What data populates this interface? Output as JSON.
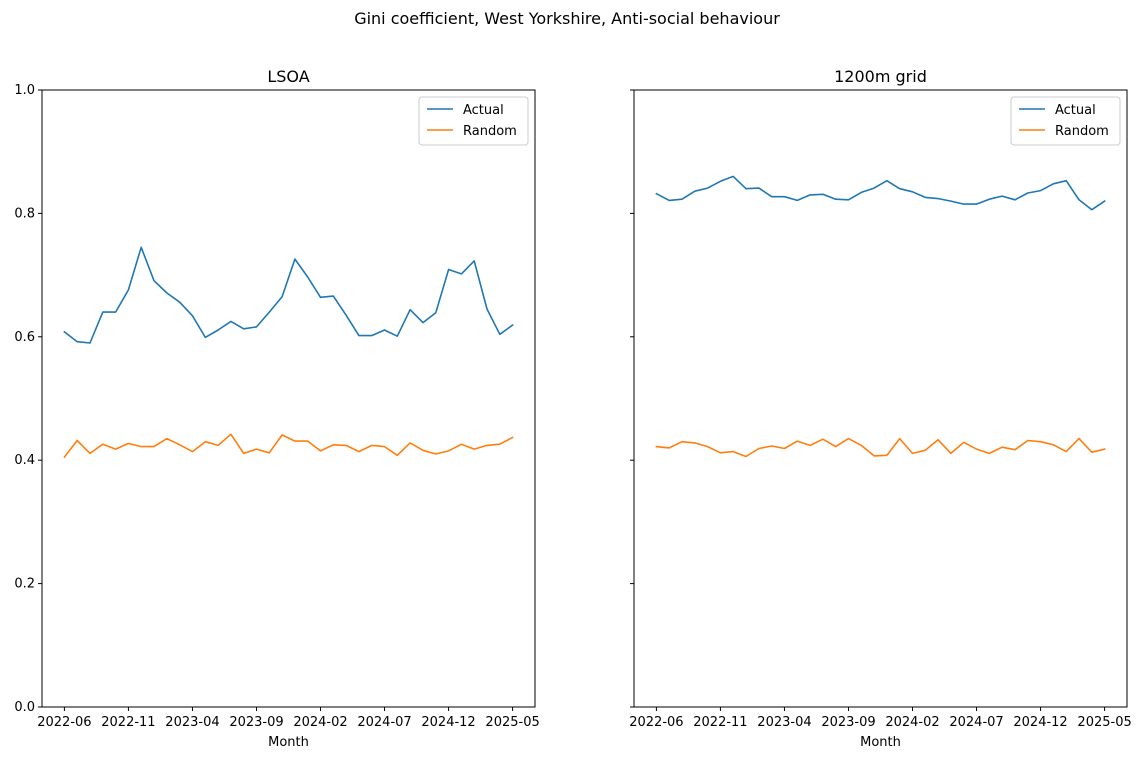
{
  "figure": {
    "title": "Gini coefficient, West Yorkshire, Anti-social behaviour"
  },
  "chart_data": [
    {
      "type": "line",
      "title": "LSOA",
      "xlabel": "Month",
      "ylabel": "",
      "ylim": [
        0,
        1
      ],
      "yticks": [
        "0.0",
        "0.2",
        "0.4",
        "0.6",
        "0.8",
        "1.0"
      ],
      "xticks": [
        "2022-06",
        "2022-11",
        "2023-04",
        "2023-09",
        "2024-02",
        "2024-07",
        "2024-12",
        "2025-05"
      ],
      "legend_position": "top-right",
      "x": [
        "2022-06",
        "2022-07",
        "2022-08",
        "2022-09",
        "2022-10",
        "2022-11",
        "2022-12",
        "2023-01",
        "2023-02",
        "2023-03",
        "2023-04",
        "2023-05",
        "2023-06",
        "2023-07",
        "2023-08",
        "2023-09",
        "2023-10",
        "2023-11",
        "2023-12",
        "2024-01",
        "2024-02",
        "2024-03",
        "2024-04",
        "2024-05",
        "2024-06",
        "2024-07",
        "2024-08",
        "2024-09",
        "2024-10",
        "2024-11",
        "2024-12",
        "2025-01",
        "2025-02",
        "2025-03",
        "2025-04",
        "2025-05"
      ],
      "series": [
        {
          "name": "Actual",
          "color": "#1f77b4",
          "values": [
            0.608,
            0.592,
            0.59,
            0.64,
            0.64,
            0.676,
            0.745,
            0.691,
            0.671,
            0.656,
            0.634,
            0.599,
            0.611,
            0.625,
            0.613,
            0.616,
            0.64,
            0.665,
            0.726,
            0.697,
            0.664,
            0.666,
            0.635,
            0.602,
            0.602,
            0.611,
            0.601,
            0.644,
            0.623,
            0.639,
            0.709,
            0.702,
            0.723,
            0.645,
            0.604,
            0.619
          ]
        },
        {
          "name": "Random",
          "color": "#ff7f0e",
          "values": [
            0.405,
            0.432,
            0.411,
            0.426,
            0.418,
            0.427,
            0.422,
            0.422,
            0.435,
            0.425,
            0.414,
            0.43,
            0.424,
            0.442,
            0.411,
            0.418,
            0.412,
            0.441,
            0.431,
            0.431,
            0.415,
            0.425,
            0.424,
            0.414,
            0.424,
            0.422,
            0.408,
            0.428,
            0.416,
            0.41,
            0.415,
            0.426,
            0.418,
            0.424,
            0.426,
            0.437
          ]
        }
      ]
    },
    {
      "type": "line",
      "title": "1200m grid",
      "xlabel": "Month",
      "ylabel": "",
      "ylim": [
        0,
        1
      ],
      "xticks": [
        "2022-06",
        "2022-11",
        "2023-04",
        "2023-09",
        "2024-02",
        "2024-07",
        "2024-12",
        "2025-05"
      ],
      "legend_position": "top-right",
      "x": [
        "2022-06",
        "2022-07",
        "2022-08",
        "2022-09",
        "2022-10",
        "2022-11",
        "2022-12",
        "2023-01",
        "2023-02",
        "2023-03",
        "2023-04",
        "2023-05",
        "2023-06",
        "2023-07",
        "2023-08",
        "2023-09",
        "2023-10",
        "2023-11",
        "2023-12",
        "2024-01",
        "2024-02",
        "2024-03",
        "2024-04",
        "2024-05",
        "2024-06",
        "2024-07",
        "2024-08",
        "2024-09",
        "2024-10",
        "2024-11",
        "2024-12",
        "2025-01",
        "2025-02",
        "2025-03",
        "2025-04",
        "2025-05"
      ],
      "series": [
        {
          "name": "Actual",
          "color": "#1f77b4",
          "values": [
            0.832,
            0.821,
            0.823,
            0.836,
            0.841,
            0.852,
            0.86,
            0.84,
            0.841,
            0.827,
            0.827,
            0.821,
            0.83,
            0.831,
            0.823,
            0.822,
            0.834,
            0.841,
            0.853,
            0.84,
            0.835,
            0.826,
            0.824,
            0.82,
            0.815,
            0.815,
            0.823,
            0.828,
            0.822,
            0.833,
            0.837,
            0.848,
            0.853,
            0.822,
            0.806,
            0.82
          ]
        },
        {
          "name": "Random",
          "color": "#ff7f0e",
          "values": [
            0.422,
            0.42,
            0.43,
            0.428,
            0.422,
            0.412,
            0.414,
            0.406,
            0.419,
            0.423,
            0.419,
            0.431,
            0.424,
            0.434,
            0.422,
            0.435,
            0.424,
            0.407,
            0.408,
            0.435,
            0.411,
            0.416,
            0.433,
            0.411,
            0.429,
            0.418,
            0.411,
            0.421,
            0.417,
            0.432,
            0.43,
            0.425,
            0.414,
            0.435,
            0.413,
            0.418
          ]
        }
      ]
    }
  ]
}
